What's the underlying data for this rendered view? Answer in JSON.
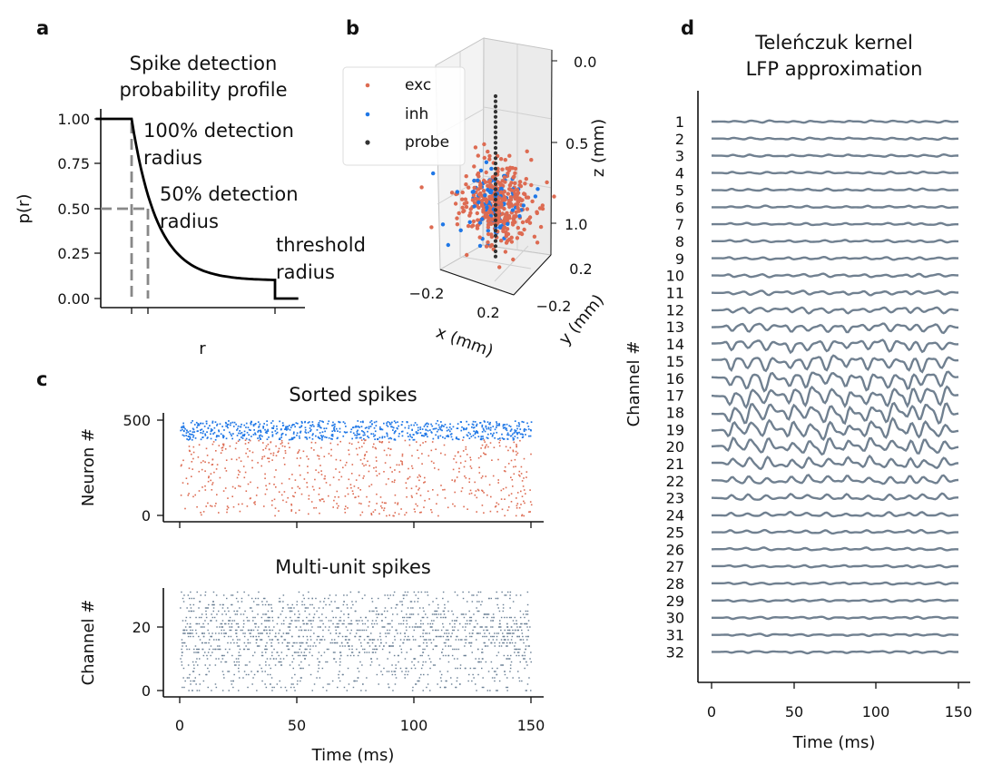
{
  "panels": {
    "a": {
      "letter": "a"
    },
    "b": {
      "letter": "b"
    },
    "c": {
      "letter": "c"
    },
    "d": {
      "letter": "d"
    }
  },
  "colors": {
    "exc": "#dd6b52",
    "inh": "#1f77e6",
    "probe": "#333333",
    "lfp": "#708090",
    "mua": "#6a7f95",
    "dashed": "#888888"
  },
  "chart_data": [
    {
      "id": "a",
      "type": "line",
      "title_lines": [
        "Spike detection",
        "probability profile"
      ],
      "xlabel": "r",
      "ylabel": "p(r)",
      "yticks": [
        "1.00",
        "0.75",
        "0.50",
        "0.25",
        "0.00"
      ],
      "ylim": [
        0,
        1
      ],
      "annotations": [
        {
          "lines": [
            "100% detection",
            "radius"
          ]
        },
        {
          "lines": [
            "50% detection",
            "radius"
          ]
        },
        {
          "lines": [
            "threshold",
            "radius"
          ]
        }
      ],
      "markers": {
        "r100": 0.2,
        "r50": 0.3,
        "threshold": 1.0,
        "p_threshold": 0.1
      }
    },
    {
      "id": "b",
      "type": "scatter",
      "legend": [
        "exc",
        "inh",
        "probe"
      ],
      "z_ticks": [
        "0.0",
        "0.5",
        "1.0"
      ],
      "zlabel": "z (mm)",
      "x_ticks": [
        "−0.2",
        "0.2"
      ],
      "xlabel": "x (mm)",
      "y_ticks": [
        "0.2",
        "−0.2"
      ],
      "ylabel": "y (mm)",
      "probe_contacts": 32
    },
    {
      "id": "c-sorted",
      "type": "scatter",
      "title": "Sorted spikes",
      "ylabel": "Neuron #",
      "yticks": [
        "500",
        "0"
      ],
      "ylim": [
        0,
        500
      ],
      "xlim": [
        0,
        150
      ],
      "exc_neurons": [
        0,
        400
      ],
      "inh_neurons": [
        400,
        500
      ]
    },
    {
      "id": "c-mua",
      "type": "scatter",
      "title": "Multi-unit spikes",
      "ylabel": "Channel #",
      "yticks": [
        "20",
        "0"
      ],
      "xlabel": "Time (ms)",
      "xticks": [
        "0",
        "50",
        "100",
        "150"
      ],
      "xlim": [
        0,
        150
      ],
      "channels": 32
    },
    {
      "id": "d",
      "type": "line",
      "title_lines": [
        "Teleńczuk kernel",
        "LFP approximation"
      ],
      "ylabel": "Channel #",
      "channels": [
        "1",
        "2",
        "3",
        "4",
        "5",
        "6",
        "7",
        "8",
        "9",
        "10",
        "11",
        "12",
        "13",
        "14",
        "15",
        "16",
        "17",
        "18",
        "19",
        "20",
        "21",
        "22",
        "23",
        "24",
        "25",
        "26",
        "27",
        "28",
        "29",
        "30",
        "31",
        "32"
      ],
      "xlabel": "Time (ms)",
      "xticks": [
        "0",
        "50",
        "100",
        "150"
      ],
      "xlim": [
        0,
        150
      ]
    }
  ]
}
